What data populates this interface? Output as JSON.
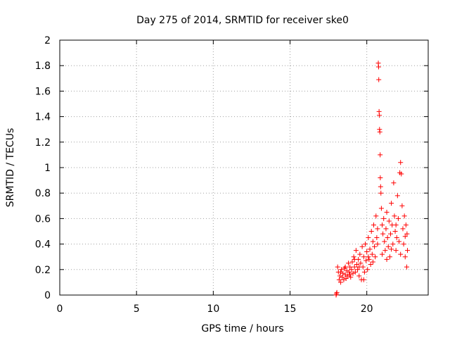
{
  "chart_data": {
    "type": "scatter",
    "title": "Day 275 of 2014, SRMTID for receiver ske0",
    "xlabel": "GPS time / hours",
    "ylabel": "SRMTID / TECUs",
    "xlim": [
      0,
      24
    ],
    "ylim": [
      0,
      2
    ],
    "xticks": [
      0,
      5,
      10,
      15,
      20
    ],
    "xtick_labels": [
      "0",
      "5",
      "10",
      "15",
      "20"
    ],
    "yticks": [
      0,
      0.2,
      0.4,
      0.6,
      0.8,
      1,
      1.2,
      1.4,
      1.6,
      1.8,
      2
    ],
    "ytick_labels": [
      "0",
      "0.2",
      "0.4",
      "0.6",
      "0.8",
      "1",
      "1.2",
      "1.4",
      "1.6",
      "1.8",
      "2"
    ],
    "grid": true,
    "marker": "plus",
    "series": [
      {
        "name": "SRMTID",
        "color": "#ff0000",
        "points": [
          [
            18.0,
            0.0
          ],
          [
            18.02,
            0.01
          ],
          [
            18.05,
            0.02
          ],
          [
            18.1,
            0.22
          ],
          [
            18.15,
            0.18
          ],
          [
            18.2,
            0.12
          ],
          [
            18.25,
            0.15
          ],
          [
            18.3,
            0.1
          ],
          [
            18.35,
            0.2
          ],
          [
            18.4,
            0.14
          ],
          [
            18.45,
            0.17
          ],
          [
            18.5,
            0.12
          ],
          [
            18.55,
            0.21
          ],
          [
            18.6,
            0.16
          ],
          [
            18.65,
            0.13
          ],
          [
            18.7,
            0.19
          ],
          [
            18.75,
            0.15
          ],
          [
            18.8,
            0.25
          ],
          [
            18.85,
            0.18
          ],
          [
            18.9,
            0.22
          ],
          [
            18.95,
            0.14
          ],
          [
            19.0,
            0.2
          ],
          [
            19.05,
            0.26
          ],
          [
            19.1,
            0.17
          ],
          [
            19.15,
            0.3
          ],
          [
            19.2,
            0.22
          ],
          [
            19.25,
            0.18
          ],
          [
            19.3,
            0.35
          ],
          [
            19.35,
            0.24
          ],
          [
            19.4,
            0.2
          ],
          [
            19.45,
            0.28
          ],
          [
            19.5,
            0.15
          ],
          [
            19.55,
            0.32
          ],
          [
            19.6,
            0.25
          ],
          [
            19.65,
            0.12
          ],
          [
            19.7,
            0.38
          ],
          [
            19.75,
            0.22
          ],
          [
            19.8,
            0.3
          ],
          [
            19.85,
            0.18
          ],
          [
            19.9,
            0.4
          ],
          [
            19.95,
            0.27
          ],
          [
            20.0,
            0.34
          ],
          [
            20.05,
            0.2
          ],
          [
            20.1,
            0.45
          ],
          [
            20.15,
            0.28
          ],
          [
            20.2,
            0.36
          ],
          [
            20.25,
            0.24
          ],
          [
            20.3,
            0.5
          ],
          [
            20.35,
            0.32
          ],
          [
            20.4,
            0.42
          ],
          [
            20.45,
            0.55
          ],
          [
            20.5,
            0.38
          ],
          [
            20.55,
            0.3
          ],
          [
            20.6,
            0.62
          ],
          [
            20.65,
            0.45
          ],
          [
            20.7,
            0.52
          ],
          [
            20.75,
            1.82
          ],
          [
            20.77,
            1.79
          ],
          [
            20.78,
            1.69
          ],
          [
            20.8,
            1.44
          ],
          [
            20.82,
            1.41
          ],
          [
            20.83,
            1.3
          ],
          [
            20.85,
            1.28
          ],
          [
            20.87,
            1.1
          ],
          [
            20.88,
            0.92
          ],
          [
            20.9,
            0.85
          ],
          [
            20.92,
            0.8
          ],
          [
            20.95,
            0.68
          ],
          [
            21.0,
            0.55
          ],
          [
            21.05,
            0.48
          ],
          [
            21.1,
            0.6
          ],
          [
            21.15,
            0.42
          ],
          [
            21.2,
            0.35
          ],
          [
            21.25,
            0.52
          ],
          [
            21.3,
            0.65
          ],
          [
            21.35,
            0.45
          ],
          [
            21.4,
            0.38
          ],
          [
            21.45,
            0.58
          ],
          [
            21.5,
            0.3
          ],
          [
            21.55,
            0.48
          ],
          [
            21.6,
            0.72
          ],
          [
            21.65,
            0.55
          ],
          [
            21.7,
            0.4
          ],
          [
            21.75,
            0.88
          ],
          [
            21.8,
            0.62
          ],
          [
            21.85,
            0.5
          ],
          [
            21.9,
            0.35
          ],
          [
            21.95,
            0.45
          ],
          [
            22.0,
            0.78
          ],
          [
            22.05,
            0.6
          ],
          [
            22.1,
            0.42
          ],
          [
            22.15,
            0.96
          ],
          [
            22.2,
            1.04
          ],
          [
            22.25,
            0.95
          ],
          [
            22.3,
            0.7
          ],
          [
            22.35,
            0.52
          ],
          [
            22.4,
            0.4
          ],
          [
            22.45,
            0.62
          ],
          [
            22.5,
            0.3
          ],
          [
            22.55,
            0.55
          ],
          [
            22.6,
            0.22
          ],
          [
            22.62,
            0.48
          ],
          [
            22.65,
            0.35
          ],
          [
            18.3,
            0.18
          ],
          [
            18.6,
            0.22
          ],
          [
            18.9,
            0.16
          ],
          [
            19.2,
            0.28
          ],
          [
            19.5,
            0.22
          ],
          [
            19.8,
            0.12
          ],
          [
            20.1,
            0.3
          ],
          [
            20.4,
            0.26
          ],
          [
            20.7,
            0.4
          ],
          [
            21.0,
            0.32
          ],
          [
            21.3,
            0.28
          ],
          [
            21.6,
            0.36
          ],
          [
            21.9,
            0.55
          ],
          [
            22.2,
            0.32
          ],
          [
            22.5,
            0.46
          ]
        ]
      }
    ]
  }
}
